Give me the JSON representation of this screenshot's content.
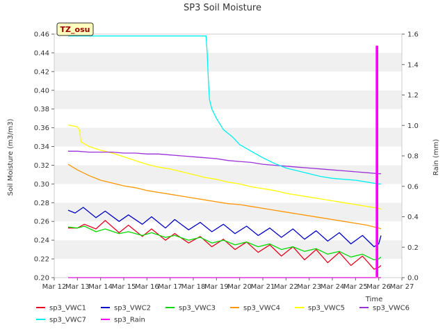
{
  "chart_data": {
    "type": "line",
    "title": "SP3 Soil Moisture",
    "ylabel": "Soil Moisture (m3/m3)",
    "y2label": "Rain (mm)",
    "xlabel": "Time",
    "station_tag": "TZ_osu",
    "xlim": [
      12,
      27
    ],
    "ylim": [
      0.2,
      0.46
    ],
    "y2lim": [
      0.0,
      1.6
    ],
    "x_tick_labels": [
      "Mar 12",
      "Mar 13",
      "Mar 14",
      "Mar 15",
      "Mar 16",
      "Mar 17",
      "Mar 18",
      "Mar 19",
      "Mar 20",
      "Mar 21",
      "Mar 22",
      "Mar 23",
      "Mar 24",
      "Mar 25",
      "Mar 26",
      "Mar 27"
    ],
    "y_tick_labels": [
      "0.20",
      "0.22",
      "0.24",
      "0.26",
      "0.28",
      "0.30",
      "0.32",
      "0.34",
      "0.36",
      "0.38",
      "0.40",
      "0.42",
      "0.44",
      "0.46"
    ],
    "y2_tick_labels": [
      "0.0",
      "0.2",
      "0.4",
      "0.6",
      "0.8",
      "1.0",
      "1.2",
      "1.4",
      "1.6"
    ],
    "grid": "horizontal bands",
    "legend_position": "bottom",
    "series": [
      {
        "name": "sp3_VWC1",
        "color": "#e8001c",
        "axis": "left",
        "x": [
          12.6,
          13.0,
          13.3,
          13.8,
          14.2,
          14.8,
          15.2,
          15.8,
          16.2,
          16.8,
          17.2,
          17.8,
          18.3,
          18.8,
          19.3,
          19.8,
          20.3,
          20.8,
          21.3,
          21.8,
          22.3,
          22.8,
          23.3,
          23.8,
          24.3,
          24.8,
          25.3,
          25.8,
          26.0,
          26.1
        ],
        "y": [
          0.253,
          0.253,
          0.257,
          0.252,
          0.261,
          0.248,
          0.256,
          0.244,
          0.252,
          0.24,
          0.247,
          0.237,
          0.244,
          0.233,
          0.241,
          0.23,
          0.238,
          0.227,
          0.235,
          0.223,
          0.233,
          0.219,
          0.23,
          0.216,
          0.227,
          0.213,
          0.223,
          0.209,
          0.211,
          0.213
        ]
      },
      {
        "name": "sp3_VWC2",
        "color": "#0000c8",
        "axis": "left",
        "x": [
          12.6,
          12.9,
          13.25,
          13.8,
          14.2,
          14.8,
          15.2,
          15.8,
          16.2,
          16.8,
          17.2,
          17.8,
          18.3,
          18.8,
          19.3,
          19.8,
          20.3,
          20.8,
          21.3,
          21.8,
          22.3,
          22.8,
          23.3,
          23.8,
          24.3,
          24.8,
          25.3,
          25.8,
          26.0,
          26.1
        ],
        "y": [
          0.272,
          0.269,
          0.275,
          0.264,
          0.271,
          0.26,
          0.267,
          0.257,
          0.265,
          0.253,
          0.262,
          0.251,
          0.259,
          0.249,
          0.257,
          0.247,
          0.255,
          0.245,
          0.253,
          0.243,
          0.252,
          0.241,
          0.25,
          0.239,
          0.248,
          0.236,
          0.245,
          0.233,
          0.236,
          0.245
        ]
      },
      {
        "name": "sp3_VWC3",
        "color": "#00dc00",
        "axis": "left",
        "x": [
          12.6,
          13.0,
          13.3,
          13.8,
          14.2,
          14.8,
          15.2,
          15.8,
          16.2,
          16.8,
          17.2,
          17.8,
          18.3,
          18.8,
          19.3,
          19.8,
          20.3,
          20.8,
          21.3,
          21.8,
          22.3,
          22.8,
          23.3,
          23.8,
          24.3,
          24.8,
          25.3,
          25.8,
          26.0,
          26.1
        ],
        "y": [
          0.254,
          0.253,
          0.255,
          0.249,
          0.252,
          0.247,
          0.249,
          0.245,
          0.248,
          0.243,
          0.245,
          0.24,
          0.243,
          0.237,
          0.24,
          0.235,
          0.238,
          0.233,
          0.236,
          0.23,
          0.233,
          0.228,
          0.231,
          0.225,
          0.228,
          0.222,
          0.225,
          0.219,
          0.22,
          0.222
        ]
      },
      {
        "name": "sp3_VWC4",
        "color": "#ff9600",
        "axis": "left",
        "x": [
          12.6,
          13.0,
          13.5,
          14.0,
          14.5,
          15.0,
          15.5,
          16.0,
          16.5,
          17.0,
          17.5,
          18.0,
          18.5,
          19.0,
          19.5,
          20.0,
          20.5,
          21.0,
          21.5,
          22.0,
          22.5,
          23.0,
          23.5,
          24.0,
          24.5,
          25.0,
          25.5,
          26.0,
          26.1
        ],
        "y": [
          0.321,
          0.315,
          0.309,
          0.304,
          0.301,
          0.298,
          0.296,
          0.293,
          0.291,
          0.289,
          0.287,
          0.285,
          0.283,
          0.281,
          0.279,
          0.278,
          0.276,
          0.274,
          0.272,
          0.27,
          0.268,
          0.266,
          0.264,
          0.262,
          0.26,
          0.258,
          0.256,
          0.253,
          0.252
        ]
      },
      {
        "name": "sp3_VWC5",
        "color": "#ffff00",
        "axis": "left",
        "x": [
          12.6,
          13.0,
          13.1,
          13.15,
          13.5,
          14.0,
          14.5,
          15.0,
          15.5,
          16.0,
          16.5,
          17.0,
          17.5,
          18.0,
          18.5,
          19.0,
          19.5,
          20.0,
          20.5,
          21.0,
          21.5,
          22.0,
          22.5,
          23.0,
          23.5,
          24.0,
          24.5,
          25.0,
          25.5,
          26.0,
          26.1
        ],
        "y": [
          0.363,
          0.361,
          0.357,
          0.345,
          0.34,
          0.336,
          0.333,
          0.329,
          0.325,
          0.321,
          0.318,
          0.316,
          0.313,
          0.31,
          0.307,
          0.305,
          0.302,
          0.3,
          0.297,
          0.295,
          0.293,
          0.29,
          0.288,
          0.286,
          0.284,
          0.282,
          0.28,
          0.278,
          0.276,
          0.274,
          0.273
        ]
      },
      {
        "name": "sp3_VWC6",
        "color": "#9b30d9",
        "axis": "left",
        "x": [
          12.6,
          13.0,
          13.5,
          14.0,
          14.5,
          15.0,
          15.5,
          16.0,
          16.5,
          17.0,
          17.5,
          18.0,
          18.5,
          19.0,
          19.5,
          20.0,
          20.5,
          21.0,
          21.5,
          22.0,
          22.5,
          23.0,
          23.5,
          24.0,
          24.5,
          25.0,
          25.5,
          26.0,
          26.1
        ],
        "y": [
          0.335,
          0.335,
          0.334,
          0.334,
          0.334,
          0.333,
          0.333,
          0.332,
          0.332,
          0.331,
          0.33,
          0.329,
          0.328,
          0.327,
          0.325,
          0.324,
          0.323,
          0.321,
          0.32,
          0.319,
          0.318,
          0.317,
          0.316,
          0.315,
          0.314,
          0.313,
          0.312,
          0.311,
          0.311
        ]
      },
      {
        "name": "sp3_VWC7",
        "color": "#00f0f0",
        "axis": "left",
        "x": [
          12.6,
          13.0,
          14.0,
          15.0,
          16.0,
          17.0,
          18.0,
          18.55,
          18.6,
          18.65,
          18.7,
          18.8,
          19.0,
          19.3,
          19.7,
          20.0,
          20.5,
          21.0,
          21.5,
          22.0,
          22.5,
          23.0,
          23.5,
          24.0,
          24.5,
          25.0,
          25.5,
          26.0,
          26.1
        ],
        "y": [
          0.458,
          0.458,
          0.458,
          0.458,
          0.458,
          0.458,
          0.458,
          0.458,
          0.44,
          0.41,
          0.39,
          0.38,
          0.37,
          0.358,
          0.35,
          0.342,
          0.335,
          0.328,
          0.322,
          0.317,
          0.314,
          0.311,
          0.308,
          0.306,
          0.305,
          0.304,
          0.302,
          0.3,
          0.3
        ]
      },
      {
        "name": "sp3_Rain",
        "color": "#ff00ff",
        "axis": "right",
        "x": [
          12.6,
          25.9,
          25.9,
          25.95,
          25.95,
          26.1
        ],
        "y": [
          0.0,
          0.0,
          1.52,
          1.52,
          0.0,
          0.0
        ]
      }
    ]
  }
}
